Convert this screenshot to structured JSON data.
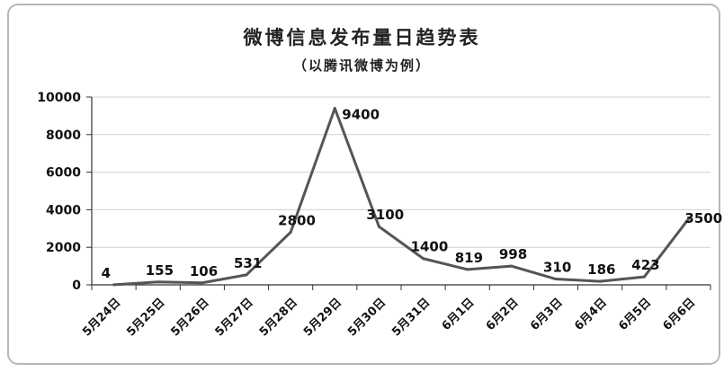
{
  "chart_data": {
    "type": "line",
    "title": "微博信息发布量日趋势表",
    "subtitle": "（以腾讯微博为例）",
    "xlabel": "",
    "ylabel": "",
    "categories": [
      "5月24日",
      "5月25日",
      "5月26日",
      "5月27日",
      "5月28日",
      "5月29日",
      "5月30日",
      "5月31日",
      "6月1日",
      "6月2日",
      "6月3日",
      "6月4日",
      "6月5日",
      "6月6日"
    ],
    "values": [
      4,
      155,
      106,
      531,
      2800,
      9400,
      3100,
      1400,
      819,
      998,
      310,
      186,
      423,
      3500
    ],
    "data_labels": [
      "4",
      "155",
      "106",
      "531",
      "2800",
      "9400",
      "3100",
      "1400",
      "819",
      "998",
      "310",
      "186",
      "423",
      "3500"
    ],
    "ylim": [
      0,
      10000
    ],
    "yticks": [
      "0",
      "2000",
      "4000",
      "6000",
      "8000",
      "10000"
    ],
    "grid": true,
    "line_color": "#555555",
    "grid_color": "#d0d0d0"
  }
}
